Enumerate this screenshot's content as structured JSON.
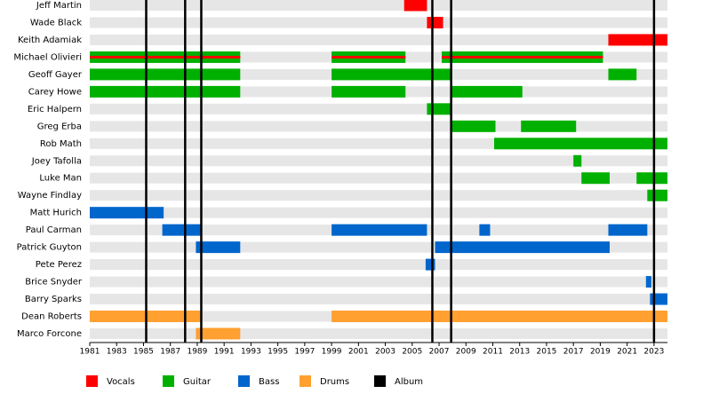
{
  "chart_data": {
    "type": "timeline",
    "categories": [
      "Jeff Martin",
      "Wade Black",
      "Keith Adamiak",
      "Michael Olivieri",
      "Geoff Gayer",
      "Carey Howe",
      "Eric Halpern",
      "Greg Erba",
      "Rob Math",
      "Joey Tafolla",
      "Luke Man",
      "Wayne Findlay",
      "Matt Hurich",
      "Paul Carman",
      "Patrick Guyton",
      "Pete Perez",
      "Brice Snyder",
      "Barry Sparks",
      "Dean Roberts",
      "Marco Forcone"
    ],
    "series": [
      {
        "name": "Vocals",
        "color": "#ff0000",
        "values": [
          [
            [
              2004.4,
              2006.1
            ]
          ],
          [
            [
              2006.1,
              2007.3
            ]
          ],
          [
            [
              2019.6,
              2024
            ]
          ],
          [
            [
              1981,
              1992.2
            ],
            [
              1999,
              2004.5
            ],
            [
              2007.2,
              2019.2
            ]
          ],
          [],
          [],
          [],
          [],
          [],
          [],
          [],
          [],
          [],
          [],
          [],
          [],
          [],
          [],
          [],
          []
        ]
      },
      {
        "name": "Guitar",
        "color": "#00b000",
        "values": [
          [],
          [],
          [],
          [
            [
              1981,
              1992.2
            ],
            [
              1999,
              2004.5
            ],
            [
              2007.2,
              2019.2
            ]
          ],
          [
            [
              1981,
              1992.2
            ],
            [
              1999,
              2007.9
            ],
            [
              2019.6,
              2021.7
            ]
          ],
          [
            [
              1981,
              1992.2
            ],
            [
              1999,
              2004.5
            ],
            [
              2007.9,
              2013.2
            ]
          ],
          [
            [
              2006.1,
              2007.9
            ]
          ],
          [
            [
              2007.9,
              2011.2
            ],
            [
              2013.1,
              2017.2
            ]
          ],
          [
            [
              2011.1,
              2024
            ]
          ],
          [
            [
              2017.0,
              2017.6
            ]
          ],
          [
            [
              2017.6,
              2019.7
            ],
            [
              2021.7,
              2024
            ]
          ],
          [
            [
              2022.5,
              2024
            ]
          ],
          [],
          [],
          [],
          [],
          [],
          [],
          [],
          []
        ]
      },
      {
        "name": "Bass",
        "color": "#0066cc",
        "values": [
          [],
          [],
          [],
          [],
          [],
          [],
          [],
          [],
          [],
          [],
          [],
          [],
          [
            [
              1981,
              1986.5
            ]
          ],
          [
            [
              1986.4,
              1989.3
            ],
            [
              1999,
              2006.1
            ],
            [
              2010.0,
              2010.8
            ],
            [
              2019.6,
              2022.5
            ]
          ],
          [
            [
              1988.9,
              1992.2
            ],
            [
              2006.7,
              2019.7
            ]
          ],
          [
            [
              2006.0,
              2006.7
            ]
          ],
          [
            [
              2022.4,
              2022.8
            ]
          ],
          [
            [
              2022.7,
              2024
            ]
          ],
          [],
          []
        ]
      },
      {
        "name": "Drums",
        "color": "#ffa030",
        "values": [
          [],
          [],
          [],
          [],
          [],
          [],
          [],
          [],
          [],
          [],
          [],
          [],
          [],
          [],
          [],
          [],
          [],
          [],
          [
            [
              1981,
              1989.3
            ],
            [
              1999,
              2024
            ]
          ],
          [
            [
              1988.9,
              1992.2
            ]
          ]
        ]
      }
    ],
    "albums": {
      "name": "Album",
      "color": "#000000",
      "values": [
        1985.2,
        1988.1,
        1989.3,
        2006.5,
        2007.9,
        2023.0
      ]
    },
    "xlim": [
      1981,
      2024
    ],
    "xticks": [
      1981,
      1983,
      1985,
      1987,
      1989,
      1991,
      1993,
      1995,
      1997,
      1999,
      2001,
      2003,
      2005,
      2007,
      2009,
      2011,
      2013,
      2015,
      2017,
      2019,
      2021,
      2023
    ]
  }
}
